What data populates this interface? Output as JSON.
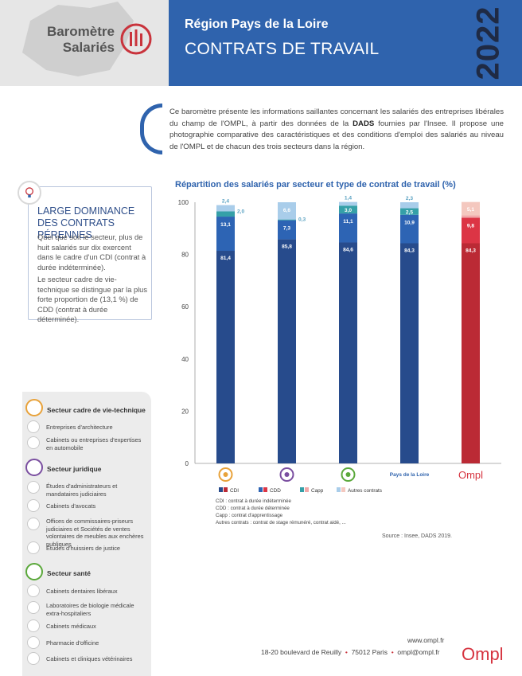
{
  "header": {
    "logo_line1": "Baromètre",
    "logo_line2": "Salariés",
    "region": "Région Pays de la Loire",
    "title": "CONTRATS DE TRAVAIL",
    "year": "2022"
  },
  "intro": {
    "text_before": "Ce baromètre présente les informations saillantes concernant les salariés des entreprises libérales du champ de l'OMPL, à partir des données de la ",
    "bold": "DADS",
    "text_after": " fournies par l'Insee. Il propose une photographie comparative des caractéristiques et des conditions d'emploi des salariés au niveau de l'OMPL et de chacun des trois secteurs dans la région."
  },
  "highlight": {
    "title": "LARGE DOMINANCE DES CONTRATS PÉRENNES",
    "p1": "Quel que soit le secteur, plus de huit salariés sur dix exercent dans le cadre d'un CDI (contrat à durée indéterminée).",
    "p2": "Le secteur cadre de vie-technique se distingue par la plus forte proportion de (13,1 %) de CDD (contrat à durée déterminée)."
  },
  "sectors": {
    "cadre": {
      "title": "Secteur cadre de vie-technique",
      "color": "#e8a23a",
      "items": [
        "Entreprises d'architecture",
        "Cabinets ou entreprises d'expertises en automobile"
      ]
    },
    "juridique": {
      "title": "Secteur juridique",
      "color": "#7a4ea0",
      "items": [
        "Études d'administrateurs et mandataires judiciaires",
        "Cabinets d'avocats",
        "Offices de commissaires-priseurs judiciaires et Sociétés de ventes volontaires de meubles aux enchères publiques",
        "Études d'huissiers de justice"
      ]
    },
    "sante": {
      "title": "Secteur santé",
      "color": "#5aa83a",
      "items": [
        "Cabinets dentaires libéraux",
        "Laboratoires de biologie médicale extra-hospitaliers",
        "Cabinets médicaux",
        "Pharmacie d'officine",
        "Cabinets et cliniques vétérinaires"
      ]
    }
  },
  "chart_data": {
    "type": "bar",
    "stacked": true,
    "title": "Répartition des salariés par secteur et type de contrat de travail (%)",
    "ylim": [
      0,
      100
    ],
    "yticks": [
      0,
      20,
      40,
      60,
      80,
      100
    ],
    "category_labels": [
      "",
      "",
      "",
      "Pays de la Loire",
      ""
    ],
    "category_icons": [
      "cadre-de-vie-technique-icon",
      "juridique-icon",
      "sante-icon",
      "",
      "ompl-logo"
    ],
    "series": [
      {
        "name": "CDI",
        "values": [
          81.4,
          85.8,
          84.6,
          84.3,
          84.3
        ],
        "labels": [
          "81,4",
          "85,8",
          "84,6",
          "84,3",
          "84,3"
        ]
      },
      {
        "name": "CDD",
        "values": [
          13.1,
          7.3,
          11.1,
          10.9,
          9.8
        ],
        "labels": [
          "13,1",
          "7,3",
          "11,1",
          "10,9",
          "9,8"
        ]
      },
      {
        "name": "Capp",
        "values": [
          2.0,
          0.3,
          3.0,
          2.5,
          0.9
        ],
        "labels": [
          "2,0",
          "0,3",
          "3,0",
          "2,5",
          "0,9"
        ]
      },
      {
        "name": "Autres contrats",
        "values": [
          2.4,
          6.6,
          1.4,
          2.3,
          5.1
        ],
        "labels": [
          "2,4",
          "6,6",
          "1,4",
          "2,3",
          "5,1"
        ]
      }
    ],
    "colors": {
      "blue": [
        "#274b8c",
        "#2d64b4",
        "#35a0a8",
        "#a9cdea"
      ],
      "red": [
        "#bb2a35",
        "#dc3545",
        "#f0a9a9",
        "#f4c8bf"
      ]
    },
    "legend": [
      "CDI",
      "CDD",
      "Capp",
      "Autres contrats"
    ],
    "notes": [
      "CDI : contrat à durée indéterminée",
      "CDD : contrat à durée déterminée",
      "Capp : contrat d'apprentissage",
      "Autres contrats : contrat de stage rémunéré, contrat aidé, ..."
    ]
  },
  "source": "Source : Insee, DADS 2019.",
  "footer": {
    "web": "www.ompl.fr",
    "address": "18-20 boulevard de Reuilly",
    "city": "75012 Paris",
    "email": "ompl@ompl.fr",
    "logo": "Ompl"
  }
}
